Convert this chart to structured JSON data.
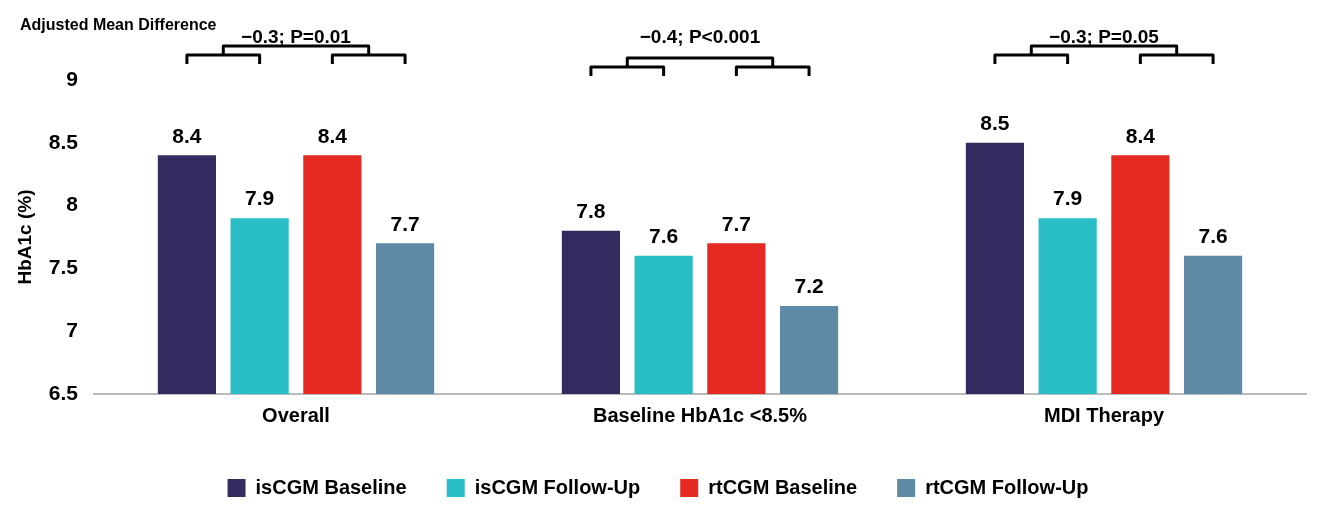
{
  "chart_data": {
    "type": "bar",
    "ylabel": "HbA1c (%)",
    "categories": [
      "Overall",
      "Baseline HbA1c <8.5%",
      "MDI Therapy"
    ],
    "series": [
      {
        "name": "isCGM Baseline",
        "color": "#352a5f",
        "values": [
          8.4,
          7.8,
          8.5
        ]
      },
      {
        "name": "isCGM Follow-Up",
        "color": "#29bec5",
        "values": [
          7.9,
          7.6,
          7.9
        ]
      },
      {
        "name": "rtCGM Baseline",
        "color": "#e52a24",
        "values": [
          8.4,
          7.7,
          8.4
        ]
      },
      {
        "name": "rtCGM Follow-Up",
        "color": "#5e8aa5",
        "values": [
          7.7,
          7.2,
          7.6
        ]
      }
    ],
    "ylim": [
      6.5,
      9
    ],
    "yticks": [
      6.5,
      7,
      7.5,
      8,
      8.5,
      9
    ],
    "data_labels": true,
    "legend": "bottom",
    "grid": false,
    "annotations": [
      "Adjusted Mean Difference",
      "−0.3; P=0.01",
      "−0.4; P<0.001",
      "−0.3; P=0.05"
    ]
  }
}
